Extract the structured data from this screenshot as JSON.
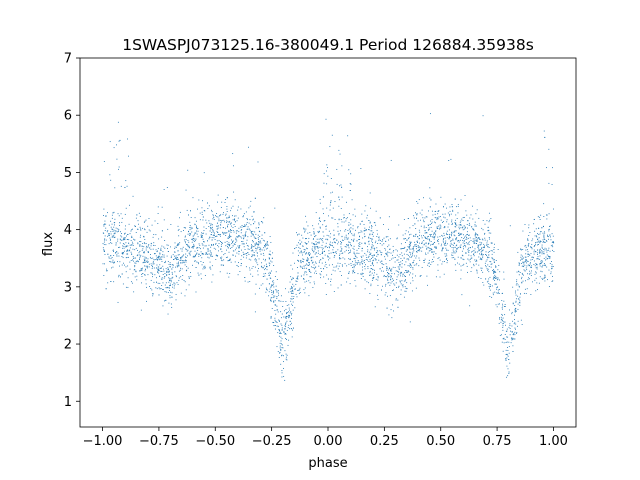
{
  "chart_data": {
    "type": "scatter",
    "title": "1SWASPJ073125.16-380049.1 Period 126884.35938s",
    "xlabel": "phase",
    "ylabel": "flux",
    "xlim": [
      -1.1,
      1.1
    ],
    "ylim": [
      0.55,
      7.0
    ],
    "xticks": [
      -1.0,
      -0.75,
      -0.5,
      -0.25,
      0.0,
      0.25,
      0.5,
      0.75,
      1.0
    ],
    "xtick_labels": [
      "−1.00",
      "−0.75",
      "−0.50",
      "−0.25",
      "0.00",
      "0.25",
      "0.50",
      "0.75",
      "1.00"
    ],
    "yticks": [
      1,
      2,
      3,
      4,
      5,
      6,
      7
    ],
    "ytick_labels": [
      "1",
      "2",
      "3",
      "4",
      "5",
      "6",
      "7"
    ],
    "grid": false,
    "legend": "none",
    "marker_color": "#1f77b4",
    "phase_range": [
      -1.0,
      1.0
    ],
    "phase_profile": [
      {
        "phase": 0.0,
        "flux": 3.75
      },
      {
        "phase": 0.05,
        "flux": 3.75
      },
      {
        "phase": 0.1,
        "flux": 3.7
      },
      {
        "phase": 0.15,
        "flux": 3.65
      },
      {
        "phase": 0.2,
        "flux": 3.55
      },
      {
        "phase": 0.25,
        "flux": 3.4
      },
      {
        "phase": 0.3,
        "flux": 3.25
      },
      {
        "phase": 0.35,
        "flux": 3.55
      },
      {
        "phase": 0.4,
        "flux": 3.75
      },
      {
        "phase": 0.45,
        "flux": 3.85
      },
      {
        "phase": 0.5,
        "flux": 3.9
      },
      {
        "phase": 0.55,
        "flux": 3.85
      },
      {
        "phase": 0.6,
        "flux": 3.85
      },
      {
        "phase": 0.65,
        "flux": 3.75
      },
      {
        "phase": 0.7,
        "flux": 3.65
      },
      {
        "phase": 0.73,
        "flux": 3.4
      },
      {
        "phase": 0.76,
        "flux": 2.8
      },
      {
        "phase": 0.79,
        "flux": 2.1
      },
      {
        "phase": 0.8,
        "flux": 2.0
      },
      {
        "phase": 0.82,
        "flux": 2.4
      },
      {
        "phase": 0.85,
        "flux": 3.1
      },
      {
        "phase": 0.88,
        "flux": 3.5
      },
      {
        "phase": 0.92,
        "flux": 3.6
      },
      {
        "phase": 0.96,
        "flux": 3.65
      },
      {
        "phase": 1.0,
        "flux": 3.75
      }
    ],
    "scatter_level": 0.3,
    "point_count": 4200
  }
}
